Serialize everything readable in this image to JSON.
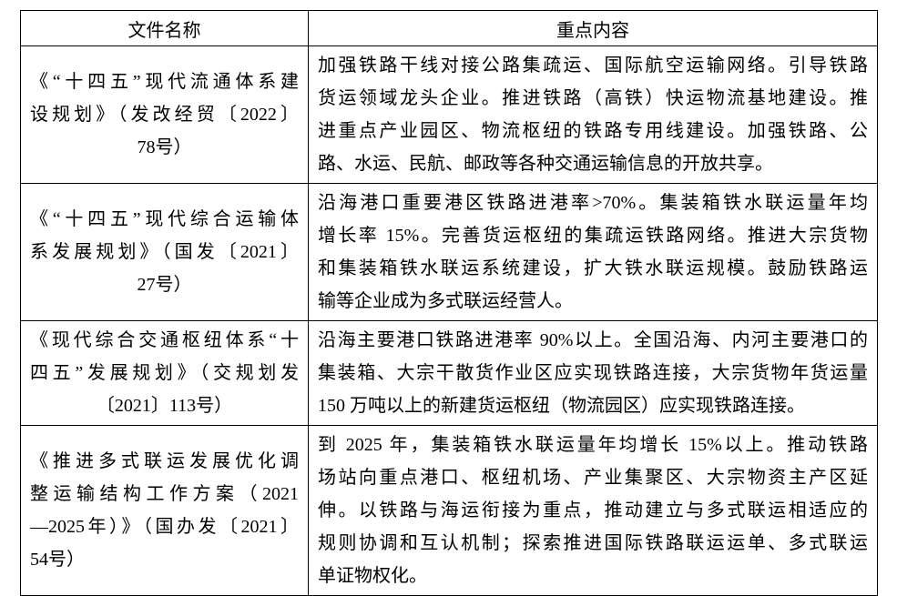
{
  "table": {
    "headers": [
      "文件名称",
      "重点内容"
    ],
    "rows": [
      {
        "name_lines": [
          "《“十四五”现代流通体系建",
          "设规划》（发改经贸〔2022〕",
          "78号）"
        ],
        "content_lines": [
          "加强铁路干线对接公路集疏运、国际航空运输网络。引导铁路",
          "货运领域龙头企业。推进铁路（高铁）快运物流基地建设。推",
          "进重点产业园区、物流枢纽的铁路专用线建设。加强铁路、公",
          "路、水运、民航、邮政等各种交通运输信息的开放共享。"
        ]
      },
      {
        "name_lines": [
          "《“十四五”现代综合运输体",
          "系发展规划》（国发〔2021〕",
          "27号）"
        ],
        "content_lines": [
          "沿海港口重要港区铁路进港率>70%。集装箱铁水联运量年均",
          "增长率 15%。完善货运枢纽的集疏运铁路网络。推进大宗货物",
          "和集装箱铁水联运系统建设，扩大铁水联运规模。鼓励铁路运",
          "输等企业成为多式联运经营人。"
        ]
      },
      {
        "name_lines": [
          "《现代综合交通枢纽体系“十",
          "四五”发展规划》（交规划发",
          "〔2021〕113号）"
        ],
        "content_lines": [
          "沿海主要港口铁路进港率 90%以上。全国沿海、内河主要港口的",
          "集装箱、大宗干散货作业区应实现铁路连接，大宗货物年货运量",
          "150 万吨以上的新建货运枢纽（物流园区）应实现铁路连接。"
        ]
      },
      {
        "name_lines": [
          "《推进多式联运发展优化调",
          "整运输结构工作方案（2021",
          "—2025年）》（国办发〔2021〕",
          "54号）"
        ],
        "content_lines": [
          "到 2025 年，集装箱铁水联运量年均增长 15%以上。推动铁路",
          "场站向重点港口、枢纽机场、产业集聚区、大宗物资主产区延",
          "伸。以铁路与海运衔接为重点，推动建立与多式联运相适应的",
          "规则协调和互认机制；探索推进国际铁路联运运单、多式联运",
          "单证物权化。"
        ]
      }
    ]
  }
}
